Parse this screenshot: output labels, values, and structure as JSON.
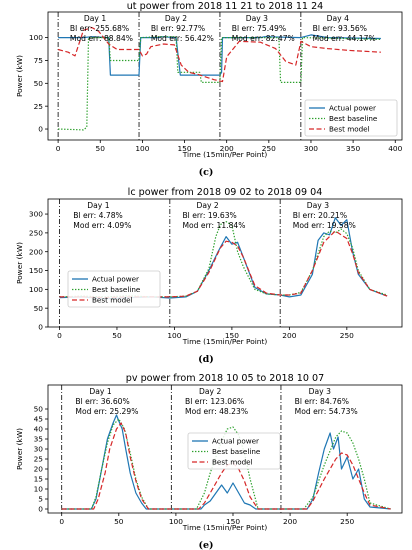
{
  "chart_data": [
    {
      "type": "line",
      "panel_label": "(c)",
      "title": "ut power from 2018 11 21 to 2018 11 24",
      "xlabel": "Time (15min/Per Point)",
      "ylabel": "Power (kW)",
      "xlim": [
        -12,
        408
      ],
      "ylim": [
        -12,
        128
      ],
      "xticks": [
        0,
        50,
        100,
        150,
        200,
        250,
        300,
        350,
        400
      ],
      "yticks": [
        0,
        25,
        50,
        75,
        100
      ],
      "day_boundaries": [
        0,
        96,
        192,
        288
      ],
      "annotations": [
        {
          "x": 14,
          "lines": [
            "Day 1",
            "Bl err: 255.68%",
            "Mod err: 88.84%"
          ]
        },
        {
          "x": 110,
          "lines": [
            "Day 2",
            "Bl err: 92.77%",
            "Mod err: 56.42%"
          ]
        },
        {
          "x": 206,
          "lines": [
            "Day 3",
            "Bl err: 75.49%",
            "Mod err: 82.47%"
          ]
        },
        {
          "x": 302,
          "lines": [
            "Day 4",
            "Bl err: 93.56%",
            "Mod err: 44.17%"
          ]
        }
      ],
      "legend_position": "lower-right",
      "series": [
        {
          "name": "Actual power",
          "color": "#1f77b4",
          "dash": "solid",
          "x": [
            0,
            30,
            40,
            60,
            62,
            96,
            98,
            120,
            122,
            140,
            145,
            192,
            194,
            195,
            197,
            240,
            245,
            288,
            300,
            320,
            383
          ],
          "y": [
            100,
            100,
            101,
            100,
            59,
            59,
            100,
            100,
            101,
            100,
            59,
            59,
            62,
            100,
            100,
            100,
            101,
            100,
            103,
            100,
            99
          ]
        },
        {
          "name": "Best baseline",
          "color": "#2ca02c",
          "dash": "dotted",
          "x": [
            0,
            30,
            34,
            36,
            60,
            62,
            96,
            98,
            120,
            140,
            142,
            168,
            170,
            192,
            194,
            240,
            262,
            264,
            288,
            290,
            383
          ],
          "y": [
            0,
            -1,
            2,
            100,
            100,
            75,
            75,
            100,
            101,
            101,
            62,
            62,
            51,
            51,
            100,
            100,
            100,
            51,
            51,
            100,
            98
          ]
        },
        {
          "name": "Best model",
          "color": "#d62728",
          "dash": "dashed",
          "x": [
            0,
            12,
            20,
            30,
            40,
            48,
            60,
            70,
            96,
            100,
            105,
            110,
            125,
            138,
            146,
            155,
            165,
            175,
            185,
            195,
            200,
            215,
            240,
            258,
            270,
            282,
            288,
            300,
            320,
            345,
            383
          ],
          "y": [
            87,
            84,
            80,
            108,
            111,
            107,
            93,
            87,
            87,
            80,
            82,
            90,
            93,
            92,
            70,
            62,
            60,
            57,
            54,
            52,
            79,
            96,
            95,
            88,
            74,
            70,
            96,
            90,
            88,
            86,
            84
          ]
        }
      ]
    },
    {
      "type": "line",
      "panel_label": "(d)",
      "title": "lc power from 2018 09 02 to 2018 09 04",
      "xlabel": "Time (15min/Per Point)",
      "ylabel": "Power (kW)",
      "xlim": [
        -10,
        298
      ],
      "ylim": [
        0,
        340
      ],
      "xticks": [
        0,
        50,
        100,
        150,
        200,
        250
      ],
      "yticks": [
        0,
        50,
        100,
        150,
        200,
        250,
        300
      ],
      "day_boundaries": [
        0,
        96,
        192
      ],
      "annotations": [
        {
          "x": 12,
          "lines": [
            "Day 1",
            "Bl err: 4.78%",
            "Mod err: 4.09%"
          ]
        },
        {
          "x": 107,
          "lines": [
            "Day 2",
            "Bl err: 19.63%",
            "Mod err: 11.84%"
          ]
        },
        {
          "x": 203,
          "lines": [
            "Day 3",
            "Bl err: 20.21%",
            "Mod err: 19.58%"
          ]
        }
      ],
      "legend_position": "left",
      "series": [
        {
          "name": "Actual power",
          "color": "#1f77b4",
          "dash": "solid",
          "x": [
            0,
            20,
            40,
            60,
            80,
            96,
            110,
            120,
            130,
            138,
            145,
            150,
            155,
            160,
            170,
            180,
            192,
            200,
            210,
            220,
            225,
            230,
            235,
            240,
            245,
            250,
            255,
            260,
            270,
            285
          ],
          "y": [
            78,
            80,
            75,
            78,
            80,
            77,
            80,
            95,
            150,
            200,
            240,
            220,
            225,
            185,
            105,
            88,
            85,
            80,
            85,
            140,
            230,
            250,
            245,
            290,
            270,
            285,
            200,
            140,
            100,
            82
          ]
        },
        {
          "name": "Best baseline",
          "color": "#2ca02c",
          "dash": "dotted",
          "x": [
            0,
            20,
            40,
            60,
            80,
            96,
            110,
            120,
            130,
            136,
            140,
            145,
            150,
            155,
            160,
            170,
            180,
            192,
            200,
            210,
            220,
            230,
            235,
            240,
            245,
            250,
            255,
            260,
            270,
            285
          ],
          "y": [
            80,
            82,
            80,
            83,
            80,
            80,
            82,
            95,
            155,
            240,
            272,
            280,
            270,
            200,
            160,
            100,
            88,
            85,
            85,
            92,
            150,
            240,
            255,
            250,
            260,
            248,
            210,
            150,
            100,
            85
          ]
        },
        {
          "name": "Best model",
          "color": "#d62728",
          "dash": "dashed",
          "x": [
            0,
            20,
            40,
            60,
            80,
            96,
            110,
            120,
            130,
            140,
            145,
            150,
            155,
            160,
            170,
            180,
            192,
            200,
            210,
            220,
            230,
            240,
            245,
            250,
            255,
            260,
            270,
            285
          ],
          "y": [
            80,
            80,
            78,
            80,
            80,
            80,
            82,
            95,
            145,
            210,
            228,
            225,
            215,
            185,
            110,
            90,
            85,
            85,
            90,
            150,
            225,
            255,
            245,
            235,
            195,
            145,
            100,
            82
          ]
        }
      ]
    },
    {
      "type": "line",
      "panel_label": "(e)",
      "title": "pv power from 2018 10 05 to 2018 10 07",
      "xlabel": "Time (15min/Per Point)",
      "ylabel": "Power (kW)",
      "xlim": [
        -12,
        298
      ],
      "ylim": [
        -2,
        62
      ],
      "xticks": [
        0,
        50,
        100,
        150,
        200,
        250
      ],
      "yticks": [
        0,
        5,
        10,
        15,
        20,
        25,
        30,
        35,
        40,
        45,
        50
      ],
      "day_boundaries": [
        0,
        96,
        192
      ],
      "annotations": [
        {
          "x": 12,
          "lines": [
            "Day 1",
            "Bl err: 36.60%",
            "Mod err: 25.29%"
          ]
        },
        {
          "x": 108,
          "lines": [
            "Day 2",
            "Bl err: 123.06%",
            "Mod err: 48.23%"
          ]
        },
        {
          "x": 204,
          "lines": [
            "Day 3",
            "Bl err: 84.76%",
            "Mod err: 54.73%"
          ]
        }
      ],
      "legend_position": "center",
      "series": [
        {
          "name": "Actual power",
          "color": "#1f77b4",
          "dash": "solid",
          "x": [
            0,
            26,
            30,
            35,
            40,
            45,
            48,
            50,
            53,
            56,
            60,
            65,
            70,
            74,
            96,
            122,
            125,
            130,
            135,
            140,
            145,
            150,
            155,
            160,
            165,
            170,
            192,
            215,
            220,
            225,
            230,
            235,
            238,
            242,
            245,
            250,
            255,
            260,
            265,
            270,
            288
          ],
          "y": [
            0,
            0,
            5,
            20,
            35,
            43,
            47,
            44,
            40,
            30,
            18,
            8,
            3,
            0,
            0,
            0,
            2,
            4,
            8,
            12,
            8,
            13,
            8,
            3,
            2,
            0,
            0,
            0,
            5,
            18,
            30,
            38,
            30,
            36,
            20,
            26,
            15,
            20,
            5,
            1,
            0
          ]
        },
        {
          "name": "Best baseline",
          "color": "#2ca02c",
          "dash": "dotted",
          "x": [
            0,
            26,
            30,
            35,
            40,
            45,
            50,
            55,
            60,
            65,
            70,
            76,
            96,
            118,
            125,
            130,
            140,
            145,
            150,
            155,
            160,
            165,
            172,
            192,
            212,
            220,
            230,
            240,
            245,
            250,
            255,
            260,
            265,
            270,
            288
          ],
          "y": [
            0,
            0,
            6,
            20,
            33,
            42,
            45,
            40,
            28,
            15,
            6,
            0,
            0,
            0,
            8,
            18,
            34,
            40,
            41,
            37,
            28,
            15,
            0,
            0,
            0,
            6,
            22,
            36,
            39,
            38,
            33,
            25,
            15,
            3,
            0
          ]
        },
        {
          "name": "Best model",
          "color": "#d62728",
          "dash": "dashed",
          "x": [
            0,
            28,
            32,
            38,
            42,
            48,
            52,
            56,
            60,
            65,
            70,
            76,
            96,
            120,
            125,
            130,
            140,
            145,
            150,
            155,
            160,
            165,
            172,
            192,
            215,
            220,
            230,
            240,
            245,
            250,
            255,
            260,
            265,
            270,
            288
          ],
          "y": [
            0,
            0,
            5,
            18,
            30,
            40,
            43,
            38,
            26,
            14,
            5,
            0,
            0,
            0,
            3,
            8,
            18,
            22,
            23,
            20,
            14,
            6,
            0,
            0,
            0,
            4,
            15,
            25,
            28,
            27,
            22,
            15,
            8,
            2,
            0
          ]
        }
      ]
    }
  ]
}
